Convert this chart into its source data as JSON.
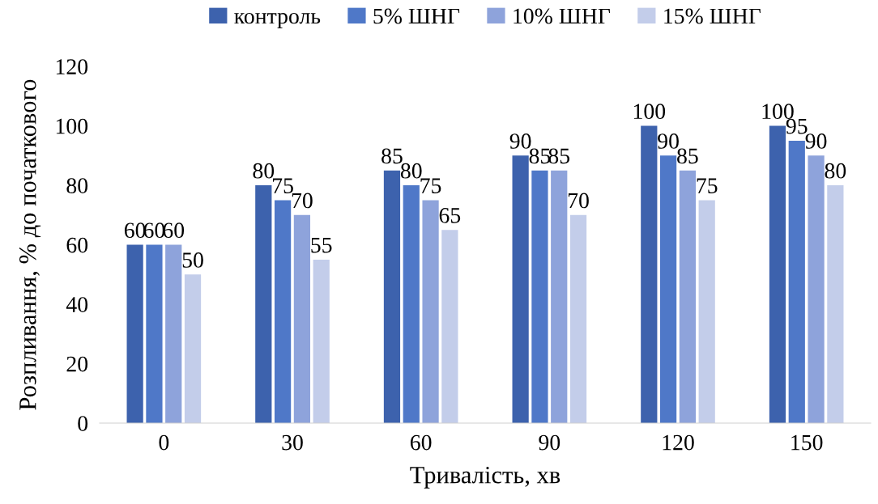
{
  "chart_data": {
    "type": "bar",
    "xlabel": "Тривалість, хв",
    "ylabel": "Розпливання, % до початкового",
    "categories": [
      "0",
      "30",
      "60",
      "90",
      "120",
      "150"
    ],
    "series": [
      {
        "name": "контроль",
        "color": "#3d62ad",
        "values": [
          60,
          80,
          85,
          90,
          100,
          100
        ]
      },
      {
        "name": "5% ШНГ",
        "color": "#4f78c8",
        "values": [
          60,
          75,
          80,
          85,
          90,
          95
        ]
      },
      {
        "name": "10% ШНГ",
        "color": "#8ea3db",
        "values": [
          60,
          70,
          75,
          85,
          85,
          90
        ]
      },
      {
        "name": "15% ШНГ",
        "color": "#c3cdea",
        "values": [
          50,
          55,
          65,
          70,
          75,
          80
        ]
      }
    ],
    "ylim": [
      0,
      120
    ],
    "yticks": [
      0,
      20,
      40,
      60,
      80,
      100,
      120
    ],
    "grid": false,
    "legend": "top",
    "data_labels": true
  }
}
